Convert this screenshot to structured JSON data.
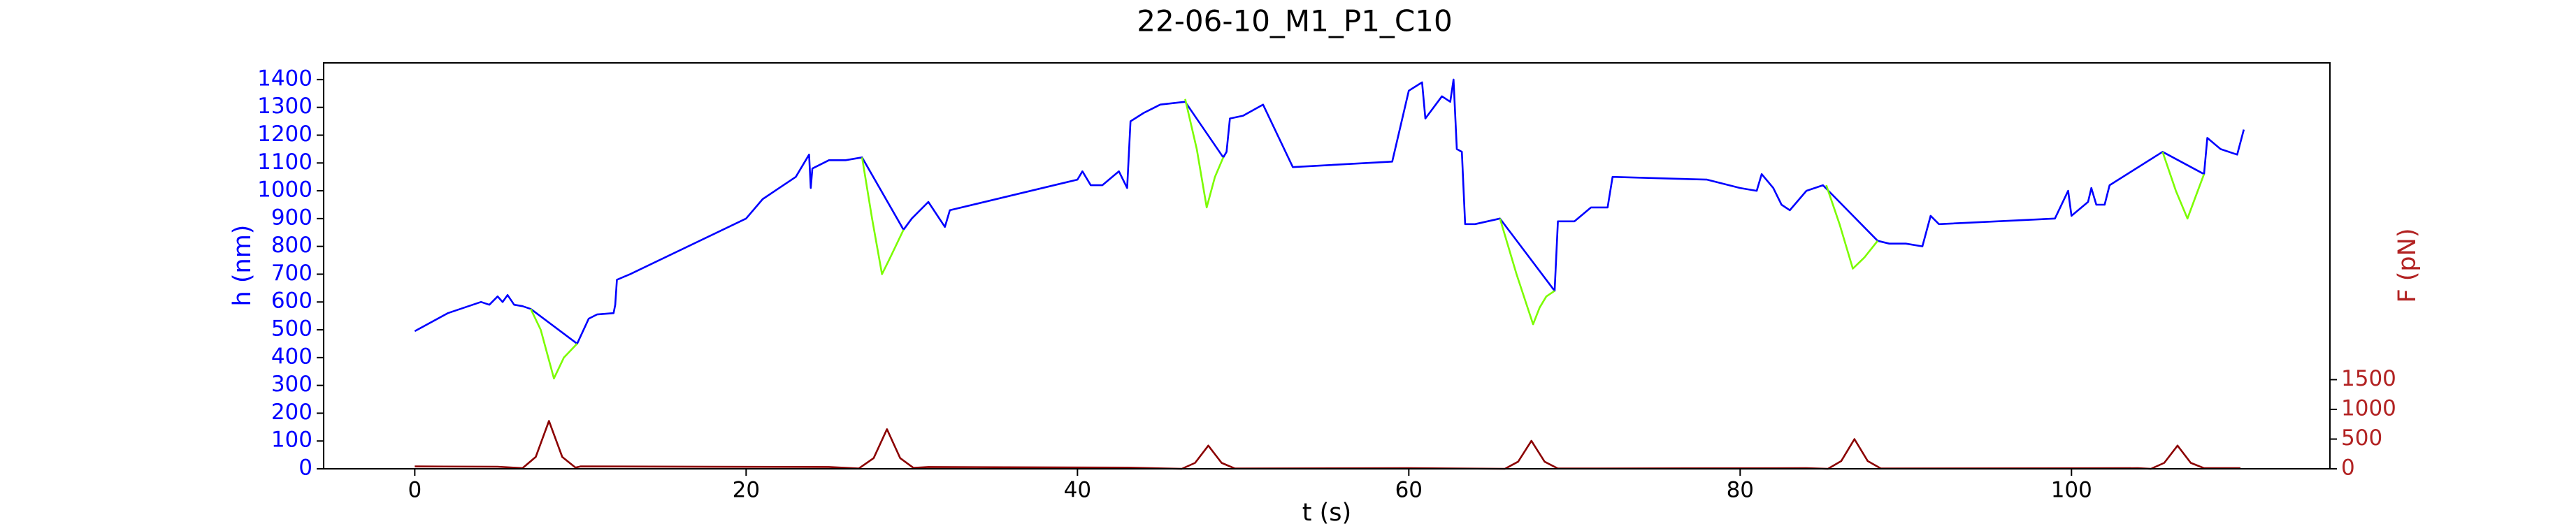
{
  "chart_data": {
    "type": "line",
    "title": "22-06-10_M1_P1_C10",
    "xlabel": "t (s)",
    "ylabel": "h (nm)",
    "y2label": "F (pN)",
    "xlim": [
      -5.5,
      115.6
    ],
    "xticks": [
      0,
      20,
      40,
      60,
      80,
      100
    ],
    "ylim": [
      0,
      1460
    ],
    "yticks": [
      0,
      100,
      200,
      300,
      400,
      500,
      600,
      700,
      800,
      900,
      1000,
      1100,
      1200,
      1300,
      1400
    ],
    "y2lim": [
      0,
      6830
    ],
    "y2ticks": [
      0,
      500,
      1000,
      1500
    ],
    "ycolor": "#0000ff",
    "y2color": "#b22222",
    "series": [
      {
        "color": "#0000ff",
        "x": [
          0,
          2,
          4,
          4.5,
          5,
          5.3,
          5.6,
          6,
          6.5,
          7,
          9.8,
          10.5,
          11,
          12,
          12.1,
          12.2,
          13,
          20,
          21,
          22,
          23,
          23.8,
          23.9,
          24,
          25,
          26,
          27,
          29.5,
          30,
          31,
          32,
          32.3,
          40,
          40.3,
          40.8,
          41.5,
          42.5,
          43,
          43.2,
          44,
          45,
          46.5,
          48.8,
          49,
          49.2,
          50,
          51.2,
          53,
          59,
          60,
          60.8,
          61,
          62,
          62.5,
          62.7,
          62.9,
          63.2,
          63.4,
          64,
          65.5,
          68.8,
          69,
          70,
          71,
          72,
          72.3,
          78,
          80,
          81,
          81.3,
          82,
          82.5,
          83,
          84,
          85,
          88.3,
          89,
          90,
          91,
          91.5,
          92,
          99,
          99.8,
          100,
          101,
          101.2,
          101.5,
          102,
          102.3,
          105.5,
          108,
          108.2,
          109,
          110,
          110.4
        ],
        "values": [
          495,
          560,
          600,
          590,
          620,
          600,
          625,
          590,
          585,
          575,
          450,
          540,
          555,
          560,
          590,
          680,
          700,
          900,
          970,
          1010,
          1050,
          1130,
          1010,
          1080,
          1110,
          1110,
          1120,
          860,
          900,
          960,
          870,
          930,
          1040,
          1070,
          1020,
          1020,
          1070,
          1010,
          1250,
          1280,
          1310,
          1320,
          1120,
          1140,
          1260,
          1270,
          1310,
          1085,
          1105,
          1360,
          1390,
          1260,
          1340,
          1320,
          1400,
          1150,
          1140,
          880,
          880,
          900,
          640,
          890,
          890,
          940,
          940,
          1050,
          1040,
          1010,
          1000,
          1060,
          1010,
          950,
          930,
          1000,
          1020,
          820,
          810,
          810,
          800,
          910,
          880,
          900,
          1000,
          910,
          960,
          1010,
          950,
          950,
          1020,
          1140,
          1060,
          1190,
          1150,
          1130,
          1220
        ]
      },
      {
        "color": "#7cfc00",
        "x": [
          7,
          7.6,
          8.4,
          9,
          9.8,
          10,
          27,
          27.6,
          28.2,
          28.7,
          29.5,
          30,
          46.5,
          47.2,
          47.8,
          48.3,
          48.8,
          49,
          65.5,
          66.5,
          67.5,
          67.9,
          68.3,
          68.8,
          69,
          85.2,
          86,
          86.8,
          87.5,
          88.3,
          90,
          105.5,
          106.3,
          107,
          107.5,
          108
        ],
        "values": [
          575,
          500,
          325,
          400,
          450,
          null,
          1120,
          900,
          700,
          760,
          860,
          null,
          1330,
          1150,
          940,
          1050,
          1120,
          null,
          900,
          700,
          520,
          580,
          620,
          640,
          null,
          1020,
          880,
          720,
          760,
          820,
          null,
          1140,
          1000,
          900,
          980,
          1060
        ]
      },
      {
        "color": "#8b0000",
        "axis": "y2",
        "x": [
          0,
          5,
          6.5,
          7.3,
          8.1,
          8.9,
          9.7,
          10,
          25,
          26.8,
          27.7,
          28.5,
          29.3,
          30.1,
          31,
          43,
          46.3,
          47.1,
          47.9,
          48.7,
          49.5,
          60,
          65.8,
          66.6,
          67.4,
          68.2,
          69,
          84,
          85.3,
          86.1,
          86.9,
          87.7,
          88.5,
          104,
          104.8,
          105.6,
          106.4,
          107.2,
          108,
          110.2
        ],
        "values": [
          40,
          35,
          10,
          200,
          805,
          200,
          20,
          40,
          30,
          5,
          180,
          667,
          180,
          15,
          30,
          20,
          0,
          100,
          390,
          100,
          5,
          10,
          0,
          120,
          470,
          120,
          5,
          10,
          0,
          130,
          500,
          130,
          5,
          10,
          0,
          100,
          390,
          100,
          10,
          10
        ]
      }
    ]
  }
}
